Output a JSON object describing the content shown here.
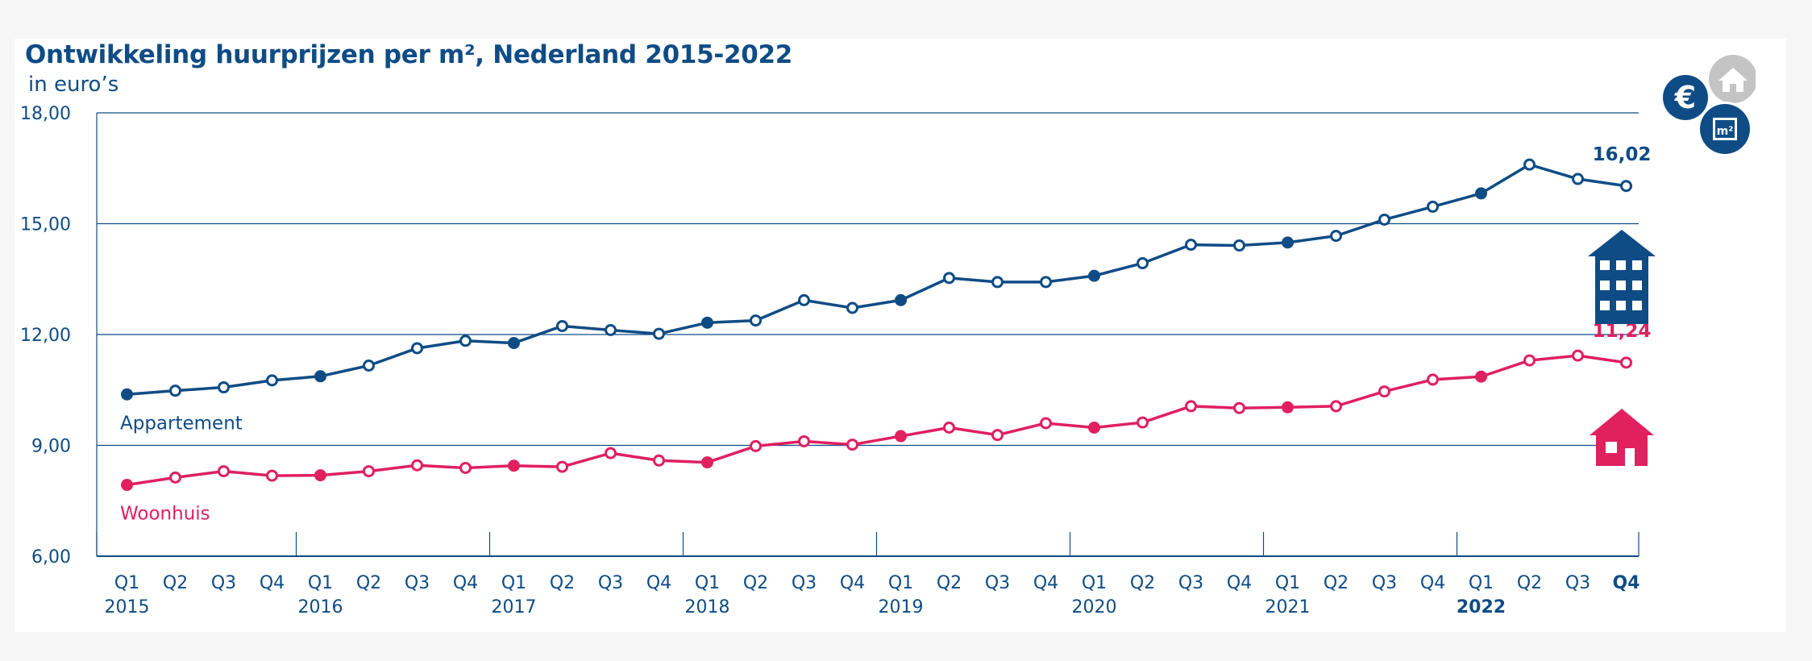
{
  "title": "Ontwikkeling huurprijzen per m², Nederland 2015-2022",
  "subtitle": "in euro’s",
  "colors": {
    "appartement": "#0f4c85",
    "woonhuis": "#e0205f",
    "grid": "#0f4c85",
    "icon_grey": "#c4c4c4"
  },
  "icons": [
    "euro-icon",
    "house-icon",
    "square-meter-icon",
    "apartment-building-icon",
    "house-icon"
  ],
  "icon_text": {
    "euro": "€",
    "m2": "m²"
  },
  "chart_data": {
    "type": "line",
    "title": "Ontwikkeling huurprijzen per m², Nederland 2015-2022",
    "subtitle": "in euro’s",
    "ylim": [
      6,
      18
    ],
    "yticks": [
      "18,00",
      "15,00",
      "12,00",
      "9,00",
      "6,00"
    ],
    "ytick_values": [
      18,
      15,
      12,
      9,
      6
    ],
    "grid": true,
    "quarters": [
      "Q1",
      "Q2",
      "Q3",
      "Q4",
      "Q1",
      "Q2",
      "Q3",
      "Q4",
      "Q1",
      "Q2",
      "Q3",
      "Q4",
      "Q1",
      "Q2",
      "Q3",
      "Q4",
      "Q1",
      "Q2",
      "Q3",
      "Q4",
      "Q1",
      "Q2",
      "Q3",
      "Q4",
      "Q1",
      "Q2",
      "Q3",
      "Q4",
      "Q1",
      "Q2",
      "Q3",
      "Q4"
    ],
    "years": [
      "2015",
      "2016",
      "2017",
      "2018",
      "2019",
      "2020",
      "2021",
      "2022"
    ],
    "bold_year": "2022",
    "bold_quarter_index": 31,
    "series": [
      {
        "name": "Appartement",
        "color": "#0f4c85",
        "values": [
          10.38,
          10.48,
          10.57,
          10.76,
          10.87,
          11.16,
          11.63,
          11.83,
          11.77,
          12.23,
          12.12,
          12.02,
          12.32,
          12.38,
          12.93,
          12.72,
          12.93,
          13.53,
          13.42,
          13.42,
          13.59,
          13.93,
          14.43,
          14.41,
          14.49,
          14.67,
          15.11,
          15.46,
          15.82,
          16.6,
          16.21,
          16.02
        ],
        "filled_points": [
          0,
          4,
          8,
          12,
          16,
          20,
          24,
          28
        ],
        "end_label": "16,02"
      },
      {
        "name": "Woonhuis",
        "color": "#e0205f",
        "values": [
          7.93,
          8.13,
          8.3,
          8.18,
          8.19,
          8.3,
          8.46,
          8.39,
          8.45,
          8.42,
          8.79,
          8.59,
          8.54,
          8.98,
          9.11,
          9.02,
          9.25,
          9.48,
          9.28,
          9.6,
          9.48,
          9.62,
          10.06,
          10.01,
          10.03,
          10.06,
          10.46,
          10.78,
          10.86,
          11.3,
          11.43,
          11.24
        ],
        "filled_points": [
          0,
          4,
          8,
          12,
          16,
          20,
          24,
          28
        ],
        "end_label": "11,24"
      }
    ]
  }
}
